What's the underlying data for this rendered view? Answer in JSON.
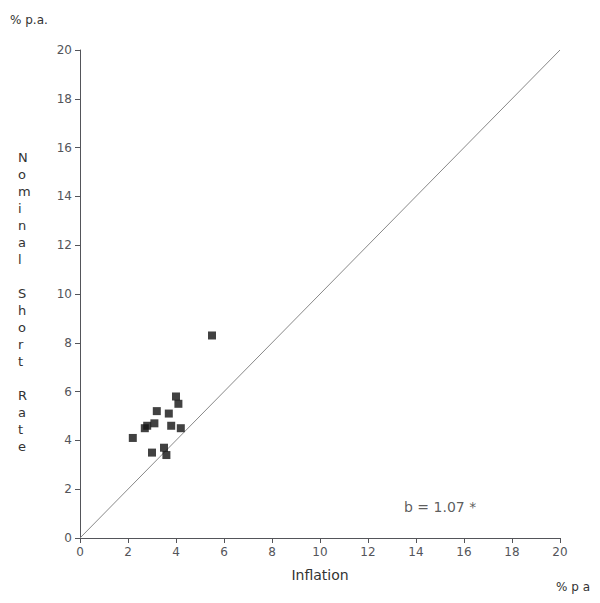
{
  "chart_data": {
    "type": "scatter",
    "xlabel": "Inflation",
    "ylabel": "Nominal Short Rate",
    "series": [
      {
        "type": "scatter",
        "marker": "square",
        "color": "#111111",
        "x": [
          2.2,
          2.7,
          2.8,
          3.0,
          3.1,
          3.2,
          3.5,
          3.6,
          3.7,
          3.8,
          4.0,
          4.1,
          4.2,
          5.5
        ],
        "values": [
          4.1,
          4.5,
          4.6,
          3.5,
          4.7,
          5.2,
          3.7,
          3.4,
          5.1,
          4.6,
          5.8,
          5.5,
          4.5,
          8.3
        ]
      },
      {
        "type": "line",
        "line_style": "solid",
        "color": "#888888",
        "x": [
          0,
          20
        ],
        "values": [
          0,
          20
        ]
      }
    ],
    "xlim": [
      0,
      20
    ],
    "ylim": [
      0,
      20
    ],
    "xticks": [
      0,
      2,
      4,
      6,
      8,
      10,
      12,
      14,
      16,
      18,
      20
    ],
    "yticks": [
      0,
      2,
      4,
      6,
      8,
      10,
      12,
      14,
      16,
      18,
      20
    ],
    "grid": false,
    "annotations": [
      {
        "text": "b = 1.07 *",
        "x": 13.5,
        "y": 1.0
      },
      {
        "text": "% p a",
        "axis": "x"
      },
      {
        "text": "% p.a.",
        "axis": "y"
      }
    ]
  }
}
